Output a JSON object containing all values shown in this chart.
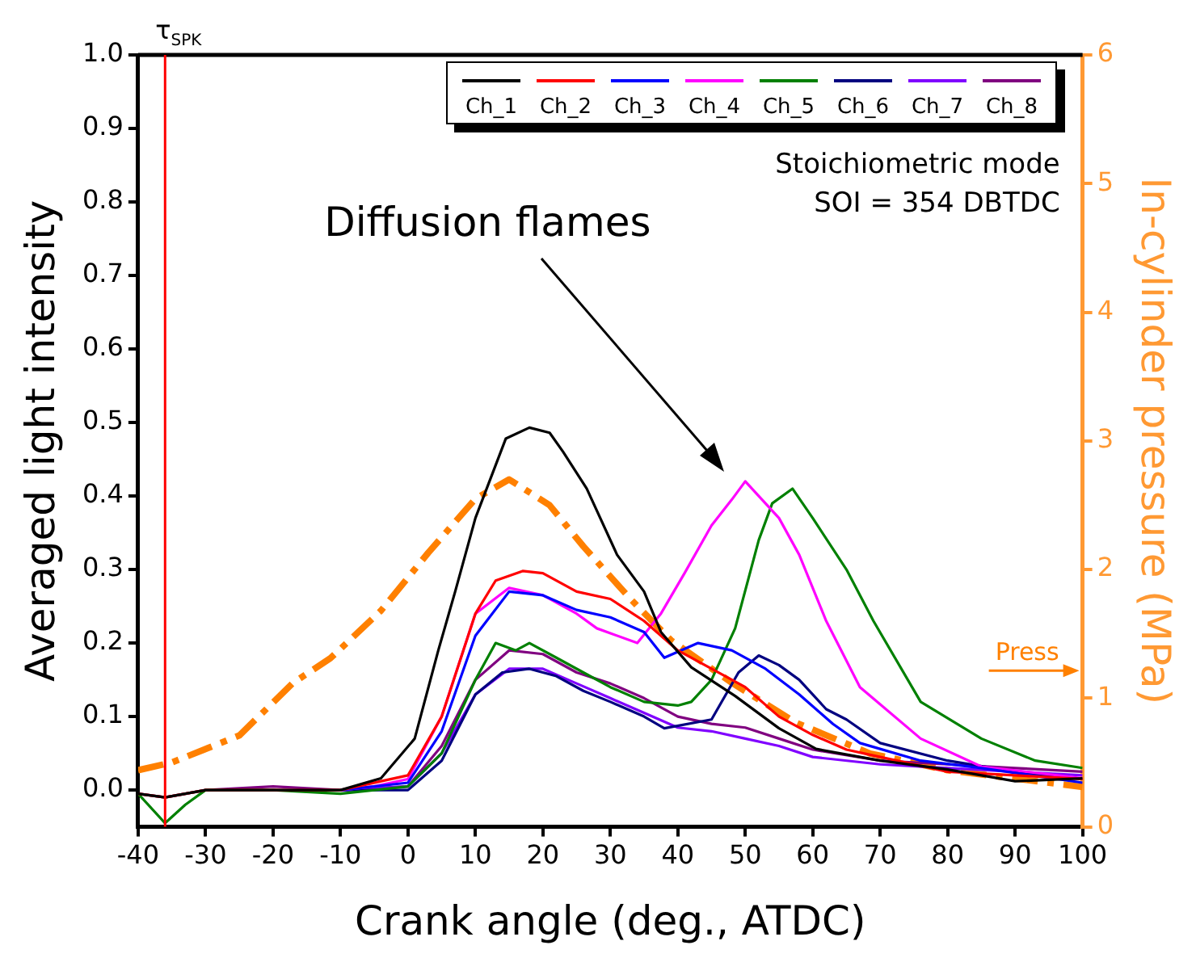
{
  "chart_data": {
    "type": "line",
    "xlabel": "Crank angle (deg., ATDC)",
    "ylabel": "Averaged light intensity",
    "y2label": "In-cylinder pressure (MPa)",
    "xlim": [
      -40,
      100
    ],
    "xticks": [
      -40,
      -30,
      -20,
      -10,
      0,
      10,
      20,
      30,
      40,
      50,
      60,
      70,
      80,
      90,
      100
    ],
    "ylim": [
      -0.05,
      1.0
    ],
    "yticks": [
      {
        "value": 0,
        "label": "0.0"
      },
      0.1,
      0.2,
      0.3,
      0.4,
      0.5,
      0.6,
      0.7,
      0.8,
      0.9,
      {
        "value": 1,
        "label": "1.0"
      }
    ],
    "y2lim": [
      0,
      6
    ],
    "y2ticks": [
      0,
      1,
      2,
      3,
      4,
      5,
      6
    ],
    "grid": false,
    "legend": "top right",
    "marker": "none",
    "line_style": "solid",
    "ref_lines": [
      {
        "axis": "x",
        "value": -36,
        "label": "τ$_{SPK}$",
        "color": "#ff0000"
      }
    ],
    "annotations": [
      "Diffusion flames",
      "Stoichiometric mode",
      "SOI = 354 DBTDC"
    ],
    "series": [
      {
        "name": "Ch_1",
        "color": "#000000",
        "x": [
          -40,
          -36,
          -30,
          -20,
          -10,
          -4,
          1,
          4.5,
          7,
          10,
          14.5,
          18,
          21,
          23,
          26.5,
          31,
          35,
          37.5,
          42,
          48.5,
          55,
          60.5,
          70,
          80,
          90,
          100
        ],
        "values": [
          -0.005,
          -0.01,
          0,
          0,
          0,
          0.016,
          0.07,
          0.19,
          0.27,
          0.37,
          0.478,
          0.493,
          0.486,
          0.46,
          0.41,
          0.32,
          0.27,
          0.215,
          0.167,
          0.128,
          0.084,
          0.056,
          0.04,
          0.028,
          0.012,
          0.016
        ]
      },
      {
        "name": "Ch_2",
        "color": "#ff0000",
        "x": [
          -40,
          -36,
          -30,
          -20,
          -10,
          0,
          5,
          10,
          13,
          17,
          20,
          25,
          30,
          35,
          40,
          45,
          50,
          55,
          60,
          65,
          70,
          80,
          90,
          100
        ],
        "values": [
          -0.005,
          -0.01,
          0,
          0,
          0,
          0.02,
          0.1,
          0.24,
          0.285,
          0.298,
          0.295,
          0.27,
          0.26,
          0.23,
          0.19,
          0.165,
          0.14,
          0.1,
          0.075,
          0.055,
          0.045,
          0.025,
          0.02,
          0.015
        ]
      },
      {
        "name": "Ch_3",
        "color": "#0000ff",
        "x": [
          -10,
          0,
          5,
          10,
          15,
          20,
          25,
          30,
          35,
          38,
          43,
          48,
          53,
          58,
          63,
          67,
          76,
          85,
          100
        ],
        "values": [
          0,
          0.01,
          0.08,
          0.21,
          0.27,
          0.265,
          0.245,
          0.235,
          0.215,
          0.18,
          0.2,
          0.19,
          0.165,
          0.13,
          0.09,
          0.064,
          0.04,
          0.03,
          0.01
        ]
      },
      {
        "name": "Ch_4",
        "color": "#ff00ff",
        "x": [
          -10,
          -5,
          0,
          5,
          10,
          15,
          20,
          25,
          28,
          34,
          37.5,
          41,
          45,
          48,
          50,
          52,
          55,
          58,
          62,
          67,
          76,
          85,
          100
        ],
        "values": [
          0,
          0.005,
          0.015,
          0.1,
          0.24,
          0.275,
          0.265,
          0.24,
          0.22,
          0.2,
          0.24,
          0.295,
          0.36,
          0.395,
          0.42,
          0.4,
          0.37,
          0.32,
          0.23,
          0.14,
          0.07,
          0.032,
          0.016
        ]
      },
      {
        "name": "Ch_5",
        "color": "#008000",
        "x": [
          -40,
          -36,
          -33,
          -30,
          -20,
          -10,
          0,
          5,
          10,
          13,
          16,
          18,
          22,
          26,
          30,
          35,
          40,
          42,
          45,
          48.5,
          52,
          54,
          57,
          60,
          65,
          69,
          76,
          85,
          93,
          100
        ],
        "values": [
          -0.005,
          -0.045,
          -0.02,
          0,
          0,
          -0.005,
          0.005,
          0.05,
          0.15,
          0.2,
          0.19,
          0.2,
          0.18,
          0.16,
          0.14,
          0.12,
          0.115,
          0.12,
          0.15,
          0.22,
          0.34,
          0.39,
          0.41,
          0.37,
          0.3,
          0.23,
          0.12,
          0.07,
          0.04,
          0.03
        ]
      },
      {
        "name": "Ch_6",
        "color": "#000080",
        "x": [
          -10,
          0,
          5,
          10,
          14,
          18,
          22,
          26,
          30,
          35,
          38,
          45,
          49,
          52,
          55,
          58,
          62,
          65,
          70,
          80,
          90,
          100
        ],
        "values": [
          0,
          0,
          0.04,
          0.13,
          0.16,
          0.165,
          0.155,
          0.135,
          0.12,
          0.1,
          0.084,
          0.096,
          0.16,
          0.183,
          0.17,
          0.15,
          0.11,
          0.096,
          0.064,
          0.04,
          0.025,
          0.015
        ]
      },
      {
        "name": "Ch_7",
        "color": "#8000ff",
        "x": [
          -10,
          0,
          5,
          10,
          15,
          20,
          25,
          30,
          35,
          40,
          45,
          50,
          55,
          60,
          70,
          80,
          90,
          100
        ],
        "values": [
          0,
          0.005,
          0.05,
          0.13,
          0.165,
          0.165,
          0.145,
          0.125,
          0.105,
          0.085,
          0.08,
          0.07,
          0.06,
          0.045,
          0.035,
          0.03,
          0.025,
          0.02
        ]
      },
      {
        "name": "Ch_8",
        "color": "#800080",
        "x": [
          -40,
          -36,
          -30,
          -20,
          -10,
          0,
          5,
          10,
          15,
          20,
          25,
          30,
          35,
          40,
          45,
          50,
          55,
          60,
          70,
          80,
          90,
          100
        ],
        "values": [
          -0.005,
          -0.01,
          0,
          0.005,
          0,
          0.005,
          0.06,
          0.15,
          0.19,
          0.185,
          0.16,
          0.145,
          0.125,
          0.1,
          0.09,
          0.085,
          0.07,
          0.055,
          0.04,
          0.035,
          0.03,
          0.025
        ]
      },
      {
        "name": "Press",
        "color": "#ff8000",
        "axis": "y2",
        "line_style": "dashed",
        "x": [
          -40,
          -35,
          -25,
          -17,
          -11.5,
          -4,
          3,
          10,
          15,
          21,
          26,
          33,
          39,
          48,
          57.5,
          68.5,
          80,
          100
        ],
        "values": [
          0.44,
          0.5,
          0.71,
          1.12,
          1.31,
          1.68,
          2.13,
          2.55,
          2.7,
          2.5,
          2.18,
          1.77,
          1.45,
          1.12,
          0.81,
          0.57,
          0.44,
          0.31
        ]
      }
    ]
  }
}
